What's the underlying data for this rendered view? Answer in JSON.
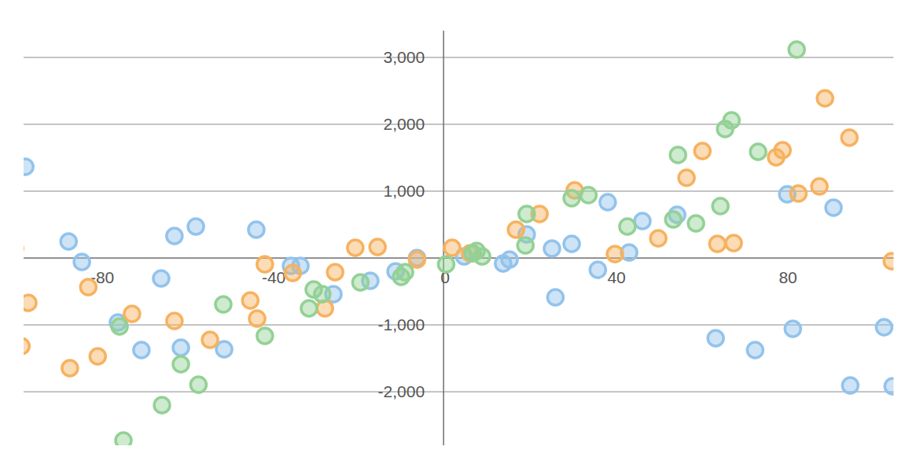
{
  "chart_data": {
    "type": "scatter",
    "xlim": [
      -98,
      105
    ],
    "ylim": [
      -2800,
      3400
    ],
    "xticks": [
      -80,
      -40,
      0,
      40,
      80
    ],
    "yticks": [
      {
        "value": -2000,
        "label": "-2,000"
      },
      {
        "value": -1000,
        "label": "-1,000"
      },
      {
        "value": 1000,
        "label": "1,000"
      },
      {
        "value": 2000,
        "label": "2,000"
      },
      {
        "value": 3000,
        "label": "3,000"
      }
    ],
    "grid": true,
    "series": [
      {
        "color": "#92c3ec",
        "marker": "circle",
        "x": [
          -97.6,
          -87.5,
          -84.4,
          -76,
          -70.5,
          -65.9,
          -62.8,
          -61.3,
          -57.8,
          -51.2,
          -43.7,
          -35.6,
          -33.4,
          -25.7,
          -17.1,
          -11.2,
          -6.2,
          4.8,
          13.9,
          15.4,
          19.4,
          25.3,
          26.1,
          29.9,
          36,
          38.3,
          43.3,
          46.4,
          54.5,
          63.5,
          72.7,
          80.2,
          81.5,
          91,
          94.9,
          102.8,
          104.8
        ],
        "values": [
          1365,
          247,
          -59,
          -965,
          -1376,
          -306,
          329,
          -1341,
          471,
          -1365,
          424,
          -118,
          -118,
          -541,
          -341,
          -200,
          0,
          24,
          -82,
          -24,
          353,
          141,
          -588,
          212,
          -176,
          835,
          82,
          553,
          647,
          -1200,
          -1376,
          953,
          -1059,
          753,
          -1906,
          -1035,
          -1918
        ]
      },
      {
        "color": "#f7b25f",
        "marker": "circle",
        "x": [
          -100,
          -98.5,
          -96.9,
          -87.2,
          -82.9,
          -80.7,
          -72.7,
          -62.8,
          -54.5,
          -45.1,
          -43.5,
          -41.7,
          -35.2,
          -27.7,
          -25.3,
          -20.6,
          -15.4,
          -6.2,
          2,
          6.2,
          16.9,
          22.4,
          30.6,
          40,
          50.1,
          56.7,
          60.4,
          63.9,
          67.7,
          77.6,
          79.1,
          82.8,
          87.7,
          89,
          94.7,
          104.6
        ],
        "values": [
          141,
          -1318,
          -671,
          -1647,
          -435,
          -1471,
          -835,
          -941,
          -1224,
          -635,
          -906,
          -94,
          -224,
          -753,
          -212,
          153,
          165,
          -24,
          153,
          71,
          424,
          659,
          1012,
          59,
          294,
          1200,
          1600,
          212,
          224,
          1506,
          1612,
          965,
          1071,
          2388,
          1800,
          -47
        ]
      },
      {
        "color": "#93d195",
        "marker": "circle",
        "x": [
          -74.7,
          -75.6,
          -65.7,
          -61.3,
          -57.2,
          -51.4,
          -41.7,
          -31.4,
          -30.3,
          -28.3,
          -19.4,
          -9.9,
          -9,
          0.6,
          6.8,
          7.7,
          9,
          19.4,
          19.1,
          29.9,
          33.8,
          42.9,
          53.6,
          54.7,
          58.9,
          64.6,
          65.7,
          67.2,
          73.4,
          82.4
        ],
        "values": [
          -2729,
          -1024,
          -2200,
          -1588,
          -1894,
          -694,
          -1165,
          -753,
          -471,
          -541,
          -365,
          -282,
          -212,
          -94,
          71,
          106,
          24,
          659,
          188,
          894,
          941,
          471,
          576,
          1541,
          518,
          776,
          1929,
          2059,
          1588,
          3118
        ]
      }
    ]
  }
}
